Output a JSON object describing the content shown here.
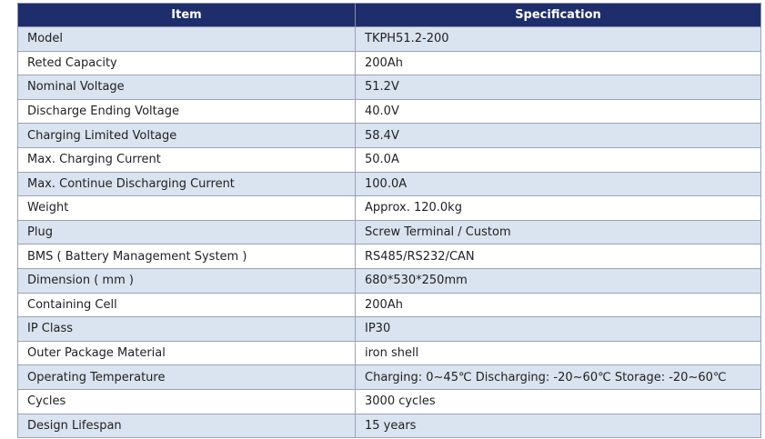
{
  "table": {
    "header": [
      "Item",
      "Specification"
    ],
    "rows": [
      [
        "Model",
        "TKPH51.2-200"
      ],
      [
        "Reted Capacity",
        "200Ah"
      ],
      [
        "Nominal Voltage",
        "51.2V"
      ],
      [
        "Discharge Ending Voltage",
        "40.0V"
      ],
      [
        "Charging Limited Voltage",
        "58.4V"
      ],
      [
        "Max. Charging Current",
        "50.0A"
      ],
      [
        "Max. Continue Discharging Current",
        "100.0A"
      ],
      [
        "Weight",
        "Approx. 120.0kg"
      ],
      [
        "Plug",
        "Screw Terminal / Custom"
      ],
      [
        "BMS ( Battery Management System )",
        "RS485/RS232/CAN"
      ],
      [
        "Dimension ( mm )",
        "680*530*250mm"
      ],
      [
        "Containing Cell",
        "200Ah"
      ],
      [
        "IP Class",
        "IP30"
      ],
      [
        "Outer Package Material",
        "iron shell"
      ],
      [
        "Operating Temperature",
        "Charging: 0~45℃   Discharging: -20~60℃   Storage: -20~60℃"
      ],
      [
        "Cycles",
        "3000 cycles"
      ],
      [
        "Design Lifespan",
        "15 years"
      ]
    ]
  }
}
